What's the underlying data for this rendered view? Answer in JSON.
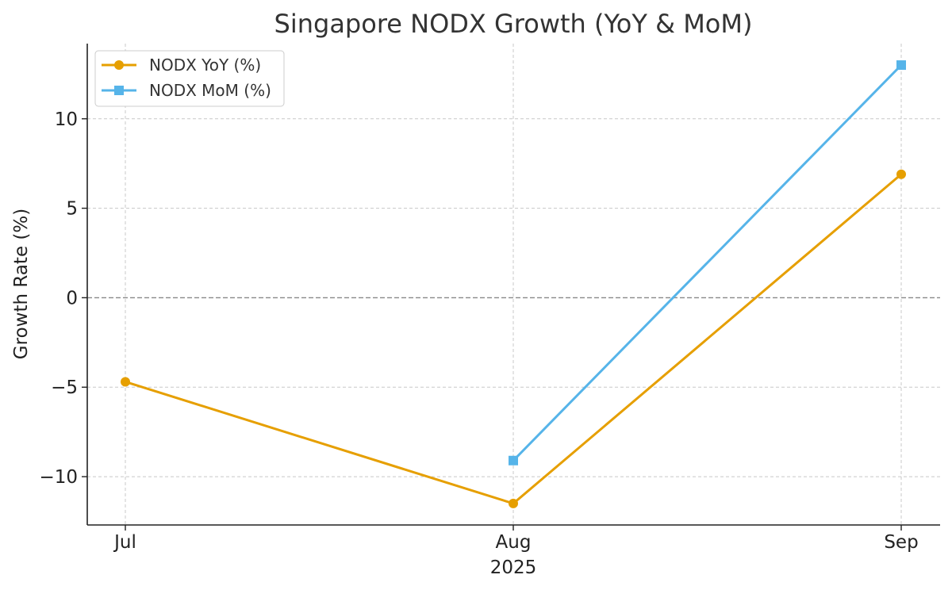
{
  "chart_data": {
    "type": "line",
    "title": "Singapore NODX Growth (YoY & MoM)",
    "xlabel": "2025",
    "ylabel": "Growth Rate (%)",
    "categories": [
      "Jul",
      "Aug",
      "Sep"
    ],
    "ylim": [
      -12.7,
      14.2
    ],
    "yticks": [
      -10,
      -5,
      0,
      5,
      10
    ],
    "ytick_labels": [
      "−10",
      "−5",
      "0",
      "5",
      "10"
    ],
    "grid": true,
    "zero_line": true,
    "legend_position": "top-left",
    "series": [
      {
        "name": "NODX YoY (%)",
        "color": "#E69F00",
        "marker": "circle",
        "values": [
          -4.7,
          -11.5,
          6.9
        ]
      },
      {
        "name": "NODX MoM (%)",
        "color": "#56B4E9",
        "marker": "square",
        "values": [
          null,
          -9.1,
          13.0
        ]
      }
    ]
  }
}
